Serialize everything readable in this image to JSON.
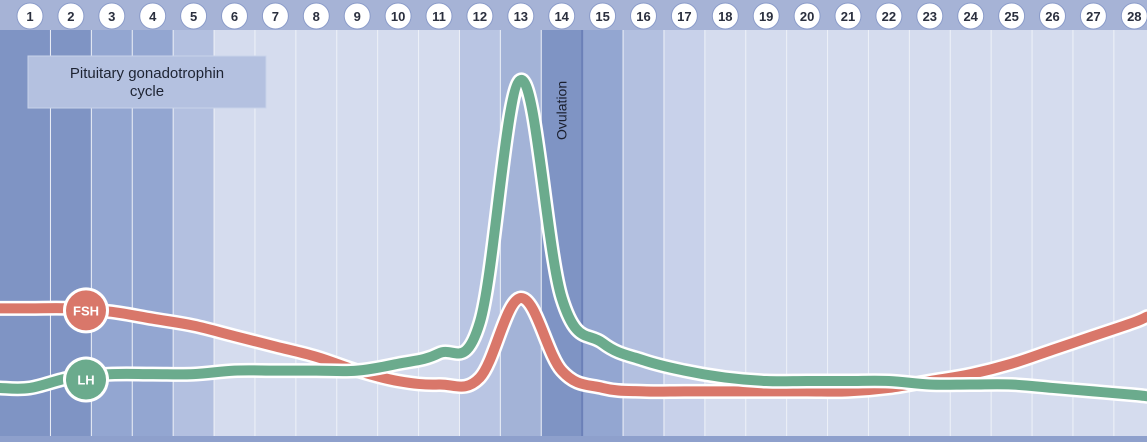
{
  "chart_data": {
    "type": "line",
    "title": "Pituitary gonadotrophin cycle",
    "x": [
      1,
      2,
      3,
      4,
      5,
      6,
      7,
      8,
      9,
      10,
      11,
      12,
      13,
      14,
      15,
      16,
      17,
      18,
      19,
      20,
      21,
      22,
      23,
      24,
      25,
      26,
      27,
      28
    ],
    "xlim": [
      0.5,
      28.5
    ],
    "ylim": [
      0,
      100
    ],
    "grid": true,
    "annotations": [
      {
        "text": "Ovulation",
        "day": 14
      }
    ],
    "series": [
      {
        "name": "FSH",
        "color": "#d9776a",
        "values": [
          34,
          34,
          33,
          31,
          29,
          26,
          23,
          20,
          16,
          13,
          12,
          14,
          37,
          16,
          11,
          10,
          10,
          10,
          10,
          10,
          10,
          11,
          13,
          15,
          18,
          22,
          26,
          30
        ]
      },
      {
        "name": "LH",
        "color": "#6bab8d",
        "values": [
          11,
          14,
          15,
          15,
          15,
          16,
          16,
          16,
          16,
          18,
          21,
          30,
          100,
          37,
          24,
          19,
          16,
          14,
          13,
          13,
          13,
          13,
          12,
          12,
          12,
          11,
          10,
          9
        ]
      }
    ],
    "colors": {
      "band_dark": "#7f94c4",
      "band_mid": "#a3b3d7",
      "band_light": "#d5dcee",
      "badge_fill": "#ffffff",
      "day_badge_text": "#2a2f3e"
    }
  }
}
